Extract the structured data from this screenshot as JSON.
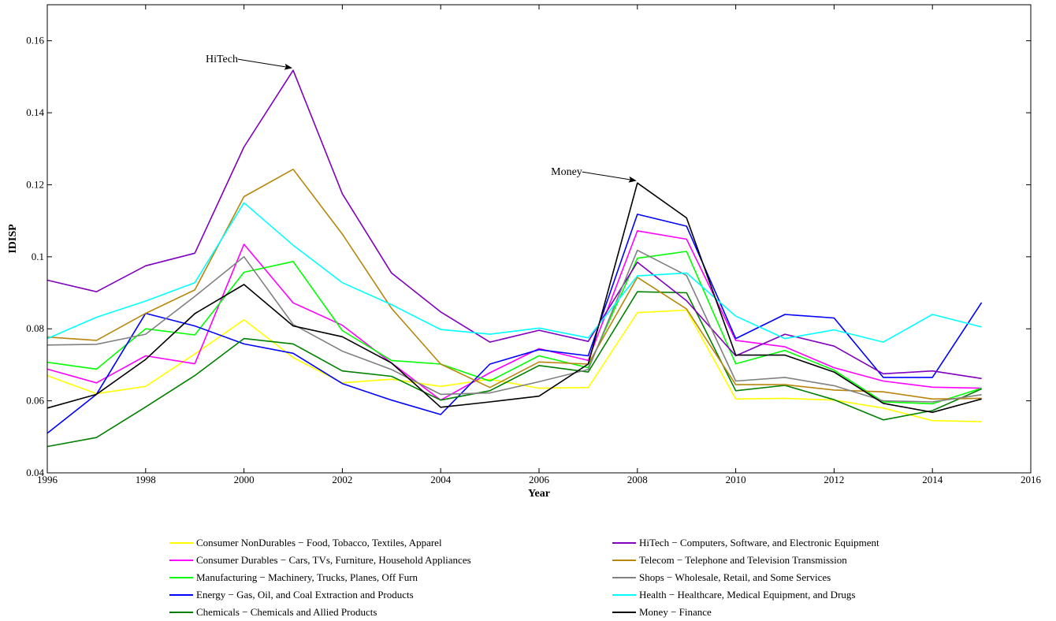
{
  "chart_data": {
    "type": "line",
    "title": "",
    "xlabel": "Year",
    "ylabel": "IDISP",
    "xlim": [
      1996,
      2016
    ],
    "ylim": [
      0.04,
      0.17
    ],
    "xticks": [
      1996,
      1998,
      2000,
      2002,
      2004,
      2006,
      2008,
      2010,
      2012,
      2014,
      2016
    ],
    "xtick_labels": [
      "1996",
      "1998",
      "2000",
      "2002",
      "2004",
      "2006",
      "2008",
      "2010",
      "2012",
      "2014",
      "2016"
    ],
    "yticks": [
      0.04,
      0.06,
      0.08,
      0.1,
      0.12,
      0.14,
      0.16
    ],
    "ytick_labels": [
      "0.04",
      "0.06",
      "0.08",
      "0.1",
      "0.12",
      "0.14",
      "0.16"
    ],
    "grid": false,
    "legend_position": "bottom, two columns",
    "x": [
      1996,
      1997,
      1998,
      1999,
      2000,
      2001,
      2002,
      2003,
      2004,
      2005,
      2006,
      2007,
      2008,
      2009,
      2010,
      2011,
      2012,
      2013,
      2014,
      2015
    ],
    "series": [
      {
        "name": "Consumer NonDurables − Food, Tobacco, Textiles, Apparel",
        "color": "#ffff00",
        "values": [
          0.067,
          0.062,
          0.064,
          0.073,
          0.0825,
          0.072,
          0.065,
          0.066,
          0.064,
          0.066,
          0.0635,
          0.0637,
          0.0845,
          0.0852,
          0.0605,
          0.0607,
          0.0602,
          0.058,
          0.0545,
          0.0542
        ]
      },
      {
        "name": "Consumer Durables − Cars, TVs, Furniture, Household Appliances",
        "color": "#ff00ff",
        "values": [
          0.0688,
          0.065,
          0.0725,
          0.0703,
          0.1035,
          0.0872,
          0.081,
          0.0705,
          0.0602,
          0.0678,
          0.0745,
          0.0712,
          0.1072,
          0.1049,
          0.0768,
          0.075,
          0.0692,
          0.0655,
          0.0638,
          0.0635
        ]
      },
      {
        "name": "Manufacturing − Machinery, Trucks, Planes, Off Furn",
        "color": "#00ff00",
        "values": [
          0.0707,
          0.0688,
          0.08,
          0.0783,
          0.0957,
          0.0987,
          0.0795,
          0.0712,
          0.0702,
          0.0655,
          0.0725,
          0.0692,
          0.0996,
          0.1015,
          0.0703,
          0.074,
          0.0685,
          0.0597,
          0.0592,
          0.0635
        ]
      },
      {
        "name": "Energy − Gas, Oil, and Coal Extraction and Products",
        "color": "#0000ff",
        "values": [
          0.051,
          0.0618,
          0.0843,
          0.0808,
          0.0758,
          0.0732,
          0.0648,
          0.0602,
          0.0562,
          0.0702,
          0.0742,
          0.0725,
          0.1118,
          0.1085,
          0.0773,
          0.084,
          0.083,
          0.0665,
          0.0665,
          0.0873
        ]
      },
      {
        "name": "Chemicals − Chemicals and Allied Products",
        "color": "#008000",
        "values": [
          0.0473,
          0.0498,
          0.0583,
          0.067,
          0.0773,
          0.0758,
          0.0683,
          0.0668,
          0.0602,
          0.0628,
          0.0698,
          0.068,
          0.0903,
          0.09,
          0.0628,
          0.0643,
          0.0603,
          0.0547,
          0.0573,
          0.0633
        ]
      },
      {
        "name": "HiTech − Computers, Software, and Electronic Equipment",
        "color": "#8000c0",
        "values": [
          0.0935,
          0.0903,
          0.0975,
          0.101,
          0.1305,
          0.1518,
          0.1175,
          0.0955,
          0.0847,
          0.0763,
          0.0796,
          0.0765,
          0.0985,
          0.0878,
          0.0725,
          0.0785,
          0.0752,
          0.0675,
          0.0683,
          0.0662
        ]
      },
      {
        "name": "Telecom − Telephone and Television Transmission",
        "color": "#b8860b",
        "values": [
          0.0777,
          0.0768,
          0.0843,
          0.0908,
          0.1167,
          0.1243,
          0.1063,
          0.0857,
          0.0702,
          0.0637,
          0.0708,
          0.0702,
          0.0943,
          0.0855,
          0.0645,
          0.0645,
          0.063,
          0.0625,
          0.0605,
          0.0607
        ]
      },
      {
        "name": "Shops − Wholesale, Retail, and Some Services",
        "color": "#808080",
        "values": [
          0.0755,
          0.0757,
          0.0785,
          0.089,
          0.1,
          0.0812,
          0.0738,
          0.0687,
          0.0618,
          0.0622,
          0.0653,
          0.0687,
          0.1018,
          0.0948,
          0.0655,
          0.0665,
          0.0642,
          0.06,
          0.0597,
          0.0617
        ]
      },
      {
        "name": "Health − Healthcare, Medical Equipment, and Drugs",
        "color": "#00ffff",
        "values": [
          0.0773,
          0.0832,
          0.0877,
          0.0928,
          0.115,
          0.1032,
          0.0928,
          0.0867,
          0.0798,
          0.0785,
          0.0802,
          0.0775,
          0.0947,
          0.0955,
          0.0835,
          0.0773,
          0.0797,
          0.0763,
          0.084,
          0.0805
        ]
      },
      {
        "name": "Money − Finance",
        "color": "#000000",
        "values": [
          0.058,
          0.0618,
          0.0715,
          0.0842,
          0.0923,
          0.0808,
          0.0778,
          0.0705,
          0.0582,
          0.0597,
          0.0613,
          0.0702,
          0.1205,
          0.1108,
          0.0727,
          0.0727,
          0.068,
          0.0593,
          0.0568,
          0.0605
        ]
      }
    ],
    "annotations": [
      {
        "text": "HiTech",
        "target_x": 2001,
        "target_y": 0.1518
      },
      {
        "text": "Money",
        "target_x": 2008,
        "target_y": 0.1205
      }
    ]
  }
}
